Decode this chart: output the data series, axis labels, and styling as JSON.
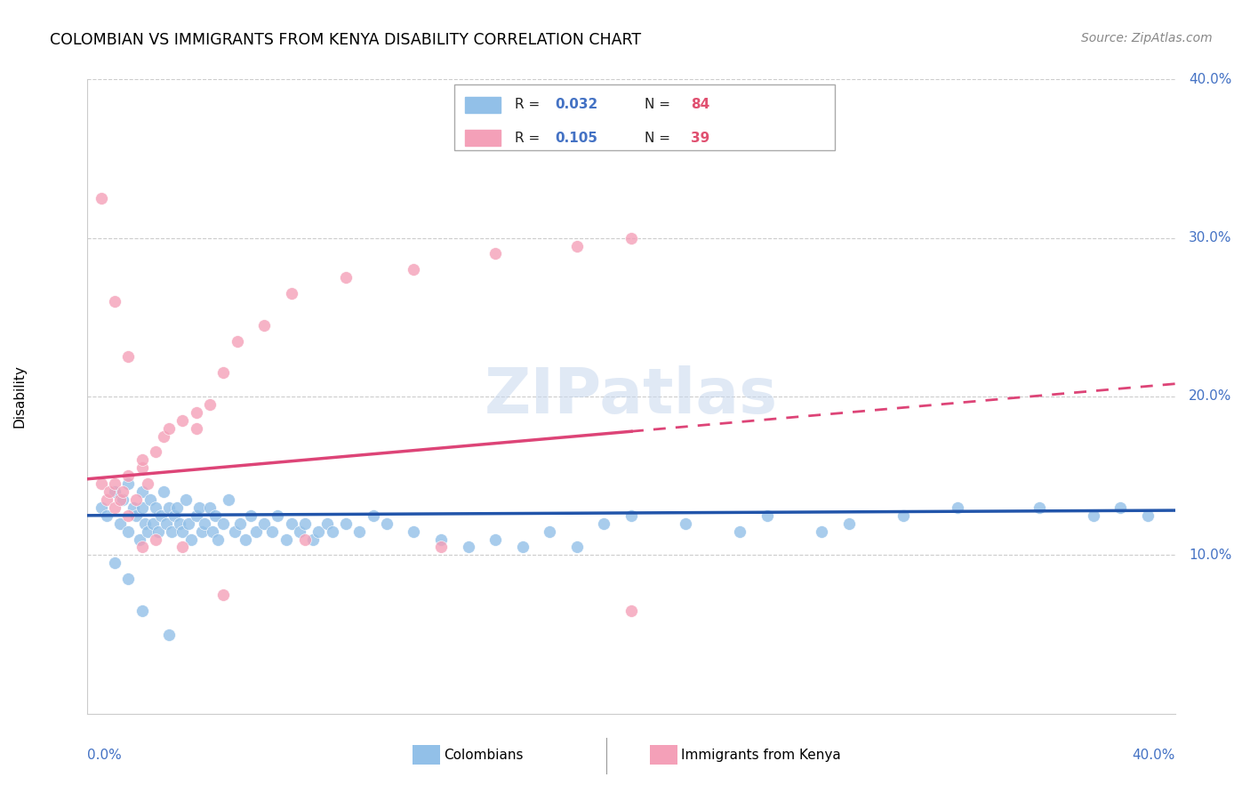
{
  "title": "COLOMBIAN VS IMMIGRANTS FROM KENYA DISABILITY CORRELATION CHART",
  "source": "Source: ZipAtlas.com",
  "ylabel": "Disability",
  "blue_color": "#92C0E8",
  "pink_color": "#F4A0B8",
  "blue_line_color": "#2255AA",
  "pink_line_color": "#DD4477",
  "legend_blue_r": "0.032",
  "legend_blue_n": "84",
  "legend_pink_r": "0.105",
  "legend_pink_n": "39",
  "watermark_text": "ZIPatlas",
  "colombians_x": [
    0.5,
    0.7,
    1.0,
    1.2,
    1.3,
    1.5,
    1.5,
    1.7,
    1.8,
    1.9,
    2.0,
    2.0,
    2.1,
    2.2,
    2.3,
    2.4,
    2.5,
    2.6,
    2.7,
    2.8,
    2.9,
    3.0,
    3.1,
    3.2,
    3.3,
    3.4,
    3.5,
    3.6,
    3.7,
    3.8,
    4.0,
    4.1,
    4.2,
    4.3,
    4.5,
    4.6,
    4.7,
    4.8,
    5.0,
    5.2,
    5.4,
    5.6,
    5.8,
    6.0,
    6.2,
    6.5,
    6.8,
    7.0,
    7.3,
    7.5,
    7.8,
    8.0,
    8.3,
    8.5,
    8.8,
    9.0,
    9.5,
    10.0,
    10.5,
    11.0,
    12.0,
    13.0,
    14.0,
    15.0,
    16.0,
    17.0,
    18.0,
    19.0,
    20.0,
    22.0,
    24.0,
    25.0,
    27.0,
    28.0,
    30.0,
    32.0,
    35.0,
    37.0,
    38.0,
    39.0,
    1.0,
    1.5,
    2.0,
    3.0
  ],
  "colombians_y": [
    13.0,
    12.5,
    14.0,
    12.0,
    13.5,
    11.5,
    14.5,
    13.0,
    12.5,
    11.0,
    13.0,
    14.0,
    12.0,
    11.5,
    13.5,
    12.0,
    13.0,
    11.5,
    12.5,
    14.0,
    12.0,
    13.0,
    11.5,
    12.5,
    13.0,
    12.0,
    11.5,
    13.5,
    12.0,
    11.0,
    12.5,
    13.0,
    11.5,
    12.0,
    13.0,
    11.5,
    12.5,
    11.0,
    12.0,
    13.5,
    11.5,
    12.0,
    11.0,
    12.5,
    11.5,
    12.0,
    11.5,
    12.5,
    11.0,
    12.0,
    11.5,
    12.0,
    11.0,
    11.5,
    12.0,
    11.5,
    12.0,
    11.5,
    12.5,
    12.0,
    11.5,
    11.0,
    10.5,
    11.0,
    10.5,
    11.5,
    10.5,
    12.0,
    12.5,
    12.0,
    11.5,
    12.5,
    11.5,
    12.0,
    12.5,
    13.0,
    13.0,
    12.5,
    13.0,
    12.5,
    9.5,
    8.5,
    6.5,
    5.0
  ],
  "kenya_x": [
    0.5,
    0.7,
    0.8,
    1.0,
    1.0,
    1.2,
    1.3,
    1.5,
    1.5,
    1.8,
    2.0,
    2.0,
    2.2,
    2.5,
    2.8,
    3.0,
    3.5,
    4.0,
    4.0,
    4.5,
    5.0,
    5.5,
    6.5,
    7.5,
    9.5,
    12.0,
    15.0,
    18.0,
    20.0,
    0.5,
    1.0,
    1.5,
    2.0,
    2.5,
    3.5,
    5.0,
    8.0,
    13.0,
    20.0
  ],
  "kenya_y": [
    14.5,
    13.5,
    14.0,
    13.0,
    14.5,
    13.5,
    14.0,
    15.0,
    12.5,
    13.5,
    15.5,
    16.0,
    14.5,
    16.5,
    17.5,
    18.0,
    18.5,
    19.0,
    18.0,
    19.5,
    21.5,
    23.5,
    24.5,
    26.5,
    27.5,
    28.0,
    29.0,
    29.5,
    30.0,
    32.5,
    26.0,
    22.5,
    10.5,
    11.0,
    10.5,
    7.5,
    11.0,
    10.5,
    6.5
  ]
}
